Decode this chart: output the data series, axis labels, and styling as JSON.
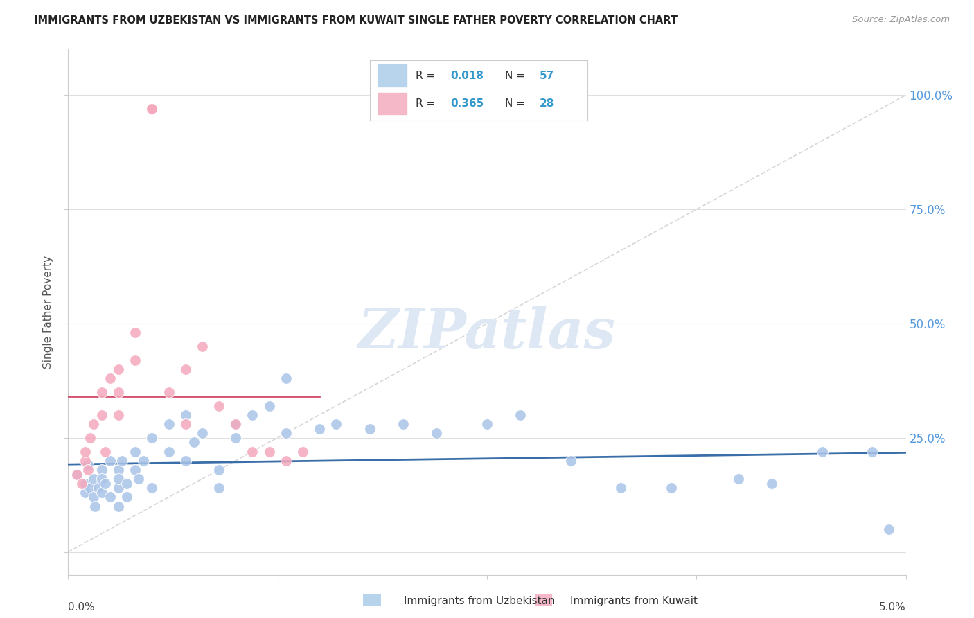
{
  "title": "IMMIGRANTS FROM UZBEKISTAN VS IMMIGRANTS FROM KUWAIT SINGLE FATHER POVERTY CORRELATION CHART",
  "source": "Source: ZipAtlas.com",
  "ylabel": "Single Father Poverty",
  "xlim": [
    0.0,
    0.05
  ],
  "ylim": [
    -0.05,
    1.1
  ],
  "ytick_vals": [
    0.0,
    0.25,
    0.5,
    0.75,
    1.0
  ],
  "ytick_labels_right": [
    "",
    "25.0%",
    "50.0%",
    "75.0%",
    "100.0%"
  ],
  "background_color": "#ffffff",
  "grid_color": "#e0e0e0",
  "blue_color": "#aac4e8",
  "pink_color": "#f4a8bc",
  "blue_line_color": "#3a6ea8",
  "pink_line_color": "#d45070",
  "diagonal_color": "#cccccc",
  "title_color": "#222222",
  "source_color": "#999999",
  "axis_label_color": "#555555",
  "right_tick_color": "#5599dd",
  "r_uzbek": 0.018,
  "n_uzbek": 57,
  "r_kuwait": 0.365,
  "n_kuwait": 28,
  "uzbekistan_x": [
    0.0005,
    0.001,
    0.001,
    0.0012,
    0.0013,
    0.0015,
    0.0015,
    0.0016,
    0.0018,
    0.002,
    0.002,
    0.002,
    0.0022,
    0.0025,
    0.0025,
    0.003,
    0.003,
    0.003,
    0.003,
    0.0032,
    0.0035,
    0.0035,
    0.004,
    0.004,
    0.0042,
    0.0045,
    0.005,
    0.005,
    0.006,
    0.006,
    0.007,
    0.007,
    0.0075,
    0.008,
    0.009,
    0.009,
    0.01,
    0.01,
    0.011,
    0.012,
    0.013,
    0.013,
    0.015,
    0.016,
    0.018,
    0.02,
    0.022,
    0.025,
    0.027,
    0.03,
    0.033,
    0.036,
    0.04,
    0.042,
    0.045,
    0.048,
    0.049
  ],
  "uzbekistan_y": [
    0.17,
    0.15,
    0.13,
    0.19,
    0.14,
    0.16,
    0.12,
    0.1,
    0.14,
    0.18,
    0.16,
    0.13,
    0.15,
    0.2,
    0.12,
    0.18,
    0.14,
    0.16,
    0.1,
    0.2,
    0.15,
    0.12,
    0.22,
    0.18,
    0.16,
    0.2,
    0.14,
    0.25,
    0.28,
    0.22,
    0.3,
    0.2,
    0.24,
    0.26,
    0.18,
    0.14,
    0.28,
    0.25,
    0.3,
    0.32,
    0.26,
    0.38,
    0.27,
    0.28,
    0.27,
    0.28,
    0.26,
    0.28,
    0.3,
    0.2,
    0.14,
    0.14,
    0.16,
    0.15,
    0.22,
    0.22,
    0.05
  ],
  "kuwait_x": [
    0.0005,
    0.0008,
    0.001,
    0.001,
    0.0012,
    0.0013,
    0.0015,
    0.002,
    0.002,
    0.0022,
    0.0025,
    0.003,
    0.003,
    0.003,
    0.004,
    0.004,
    0.005,
    0.005,
    0.006,
    0.007,
    0.007,
    0.008,
    0.009,
    0.01,
    0.011,
    0.012,
    0.013,
    0.014
  ],
  "kuwait_y": [
    0.17,
    0.15,
    0.2,
    0.22,
    0.18,
    0.25,
    0.28,
    0.3,
    0.35,
    0.22,
    0.38,
    0.3,
    0.35,
    0.4,
    0.42,
    0.48,
    0.97,
    0.97,
    0.35,
    0.4,
    0.28,
    0.45,
    0.32,
    0.28,
    0.22,
    0.22,
    0.2,
    0.22
  ]
}
